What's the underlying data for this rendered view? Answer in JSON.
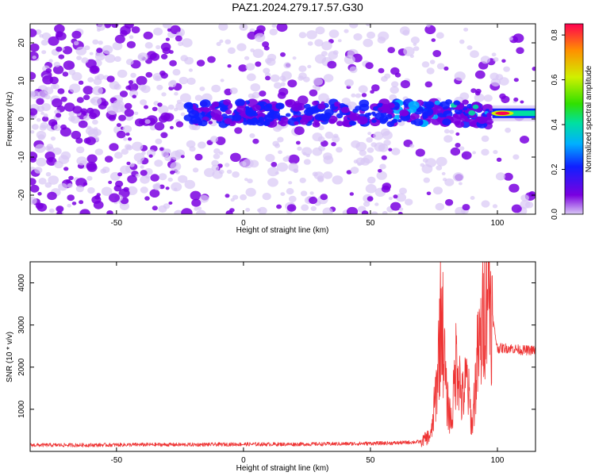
{
  "title": "PAZ1.2024.279.17.57.G30",
  "chart_data": [
    {
      "type": "heatmap",
      "xlabel": "Height of straight line (km)",
      "ylabel": "Frequency (Hz)",
      "xlim": [
        -84,
        115
      ],
      "ylim": [
        -25,
        25
      ],
      "x_ticks": [
        "-50",
        "0",
        "50",
        "100"
      ],
      "y_ticks": [
        "-20",
        "-10",
        "0",
        "10",
        "20"
      ],
      "colorbar": {
        "label": "Normalized spectral amplitude",
        "range": [
          0.0,
          0.85
        ],
        "ticks": [
          "0.0",
          "0.2",
          "0.4",
          "0.6",
          "0.8"
        ],
        "colors": [
          "#d9c8f5",
          "#7a00e0",
          "#1020ff",
          "#00b0ff",
          "#00e0a0",
          "#30e000",
          "#d0f000",
          "#ff9000",
          "#ff0050"
        ]
      },
      "signal_band": {
        "frequency_hz": 1.5,
        "starts_km": -22,
        "strong_from_km": 98,
        "peak_km": 100
      }
    },
    {
      "type": "line",
      "xlabel": "Height of straight line (km)",
      "ylabel": "SNR (10 * v/v)",
      "xlim": [
        -84,
        115
      ],
      "ylim": [
        0,
        4500
      ],
      "x_ticks": [
        "-50",
        "0",
        "50",
        "100"
      ],
      "y_ticks": [
        "1000",
        "2000",
        "3000",
        "4000"
      ],
      "color": "#ee3333",
      "series": [
        {
          "x": [
            -84,
            -60,
            -40,
            -20,
            0,
            20,
            40,
            60,
            70,
            74,
            76,
            78,
            80,
            82,
            84,
            86,
            88,
            90,
            92,
            94,
            96,
            98,
            100,
            105,
            110,
            115
          ],
          "values": [
            150,
            150,
            160,
            160,
            170,
            170,
            180,
            200,
            230,
            400,
            1500,
            3500,
            1200,
            700,
            2400,
            1200,
            1700,
            600,
            2100,
            2800,
            4500,
            3200,
            2450,
            2450,
            2400,
            2400
          ]
        }
      ]
    }
  ]
}
